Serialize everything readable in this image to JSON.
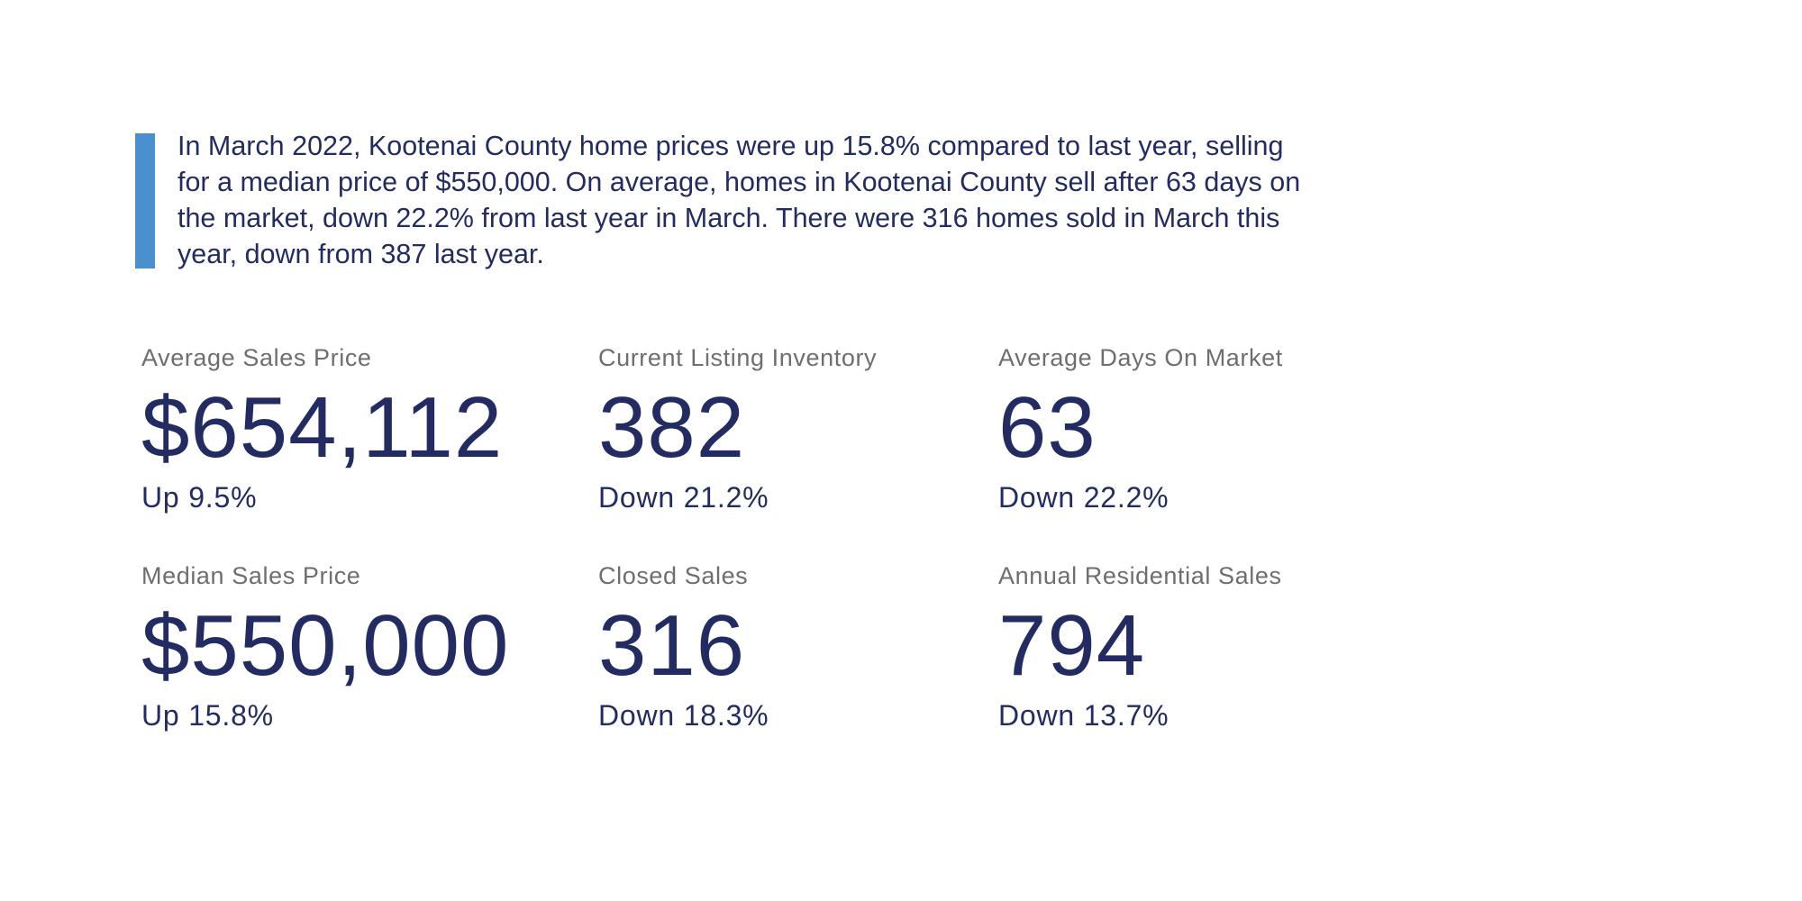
{
  "summary": {
    "text": "In March 2022, Kootenai County home prices were up 15.8% compared to last year, selling for a median price of $550,000. On average, homes in Kootenai County sell after 63 days on the market, down 22.2% from last year in March. There were 316 homes sold in March this year, down from 387 last year.",
    "accent_color": "#4a8fce"
  },
  "colors": {
    "primary": "#232c62",
    "label": "#6e6e72"
  },
  "stats": [
    {
      "label": "Average Sales Price",
      "value": "$654,112",
      "change": "Up 9.5%"
    },
    {
      "label": "Current Listing Inventory",
      "value": "382",
      "change": "Down 21.2%"
    },
    {
      "label": "Average Days On Market",
      "value": "63",
      "change": "Down 22.2%"
    },
    {
      "label": "Median Sales Price",
      "value": "$550,000",
      "change": "Up 15.8%"
    },
    {
      "label": "Closed Sales",
      "value": "316",
      "change": "Down 18.3%"
    },
    {
      "label": "Annual Residential Sales",
      "value": "794",
      "change": "Down 13.7%"
    }
  ]
}
